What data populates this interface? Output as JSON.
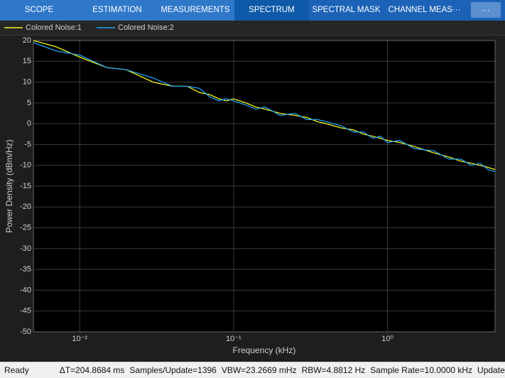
{
  "tabs": [
    "SCOPE",
    "ESTIMATION",
    "MEASUREMENTS",
    "SPECTRUM",
    "SPECTRAL MASK",
    "CHANNEL MEAS···"
  ],
  "more_button": "···",
  "status": [
    "Ready",
    "ΔT=204.8684 ms",
    "Samples/Update=1396",
    "VBW=23.2669 mHz",
    "RBW=4.8812 Hz",
    "Sample Rate=10.0000 kHz",
    "Updates="
  ],
  "chart_data": {
    "type": "line",
    "x_label": "Frequency (kHz)",
    "y_label": "Power Density (dBm/Hz)",
    "log_x": true,
    "grid": true,
    "xlim": [
      0.005,
      5
    ],
    "ylim": [
      -50,
      20
    ],
    "xticks": [
      {
        "value": 0.01,
        "label": "10⁻²"
      },
      {
        "value": 0.1,
        "label": "10⁻¹"
      },
      {
        "value": 1,
        "label": "10⁰"
      }
    ],
    "yticks": [
      -50,
      -45,
      -40,
      -35,
      -30,
      -25,
      -20,
      -15,
      -10,
      -5,
      0,
      5,
      10,
      15,
      20
    ],
    "x": [
      0.005,
      0.007,
      0.01,
      0.015,
      0.02,
      0.03,
      0.04,
      0.05,
      0.06,
      0.07,
      0.08,
      0.09,
      0.1,
      0.12,
      0.14,
      0.16,
      0.18,
      0.2,
      0.25,
      0.3,
      0.35,
      0.4,
      0.5,
      0.6,
      0.7,
      0.8,
      0.9,
      1,
      1.2,
      1.5,
      2,
      2.5,
      3,
      3.5,
      4,
      4.5,
      5
    ],
    "series": [
      {
        "name": "Colored Noise:1",
        "color": "#f2f21c",
        "values": [
          20,
          18.5,
          16,
          13.5,
          13,
          10,
          9,
          9,
          7.5,
          7,
          6,
          5.5,
          6,
          5,
          4,
          3.5,
          3,
          2.5,
          2,
          1.5,
          0.5,
          0,
          -1,
          -1.5,
          -2.5,
          -3,
          -3.5,
          -4,
          -4.5,
          -5.5,
          -7,
          -8,
          -9,
          -9.5,
          -10,
          -10.5,
          -11
        ]
      },
      {
        "name": "Colored Noise:2",
        "color": "#1fa0f0",
        "values": [
          19.5,
          17.5,
          16.5,
          13.5,
          13,
          11,
          9,
          9,
          8.5,
          6.5,
          5.5,
          6,
          5.5,
          4.5,
          3.5,
          4,
          3,
          2,
          2.5,
          1,
          1,
          0.5,
          -0.5,
          -2,
          -2,
          -3.5,
          -3,
          -4.5,
          -4,
          -6,
          -6.5,
          -8.5,
          -8.5,
          -10,
          -9.5,
          -11,
          -11.5
        ]
      }
    ]
  }
}
